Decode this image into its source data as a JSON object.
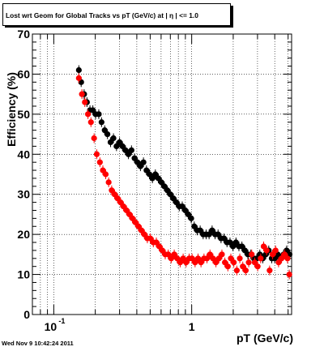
{
  "chart_data": {
    "type": "scatter",
    "title": "Lost wrt Geom for Global Tracks vs pT (GeV/c) at |  η | <= 1.0",
    "xlabel": "pT (GeV/c)",
    "ylabel": "Efficiency (%)",
    "xscale": "log",
    "xlim": [
      0.07,
      5.3
    ],
    "ylim": [
      0,
      70
    ],
    "yticks": [
      0,
      10,
      20,
      30,
      40,
      50,
      60,
      70
    ],
    "xticks": [
      {
        "label": "10",
        "exp": "-1",
        "value": 0.1
      },
      {
        "label": "1",
        "exp": "",
        "value": 1
      }
    ],
    "grid": true,
    "series": [
      {
        "color": "#000000",
        "points": [
          [
            0.152,
            61
          ],
          [
            0.158,
            58
          ],
          [
            0.166,
            55
          ],
          [
            0.174,
            53
          ],
          [
            0.183,
            51
          ],
          [
            0.192,
            51
          ],
          [
            0.201,
            50
          ],
          [
            0.212,
            50
          ],
          [
            0.222,
            48
          ],
          [
            0.234,
            46
          ],
          [
            0.245,
            45
          ],
          [
            0.258,
            43
          ],
          [
            0.271,
            44
          ],
          [
            0.285,
            42
          ],
          [
            0.3,
            43
          ],
          [
            0.315,
            42
          ],
          [
            0.331,
            41
          ],
          [
            0.348,
            40
          ],
          [
            0.366,
            41
          ],
          [
            0.385,
            39
          ],
          [
            0.404,
            38
          ],
          [
            0.425,
            37
          ],
          [
            0.447,
            38
          ],
          [
            0.47,
            36
          ],
          [
            0.494,
            35
          ],
          [
            0.519,
            34
          ],
          [
            0.545,
            35
          ],
          [
            0.573,
            34
          ],
          [
            0.603,
            33
          ],
          [
            0.633,
            32
          ],
          [
            0.666,
            31
          ],
          [
            0.7,
            30
          ],
          [
            0.735,
            29
          ],
          [
            0.773,
            28
          ],
          [
            0.813,
            27
          ],
          [
            0.854,
            27
          ],
          [
            0.898,
            26
          ],
          [
            0.944,
            25
          ],
          [
            0.992,
            24
          ],
          [
            1.043,
            22
          ],
          [
            1.096,
            21
          ],
          [
            1.152,
            21
          ],
          [
            1.211,
            20
          ],
          [
            1.272,
            20
          ],
          [
            1.337,
            20
          ],
          [
            1.406,
            21
          ],
          [
            1.478,
            20
          ],
          [
            1.553,
            20
          ],
          [
            1.632,
            19
          ],
          [
            1.716,
            19
          ],
          [
            1.803,
            18
          ],
          [
            1.895,
            18
          ],
          [
            1.992,
            17
          ],
          [
            2.094,
            18
          ],
          [
            2.2,
            17
          ],
          [
            2.313,
            17
          ],
          [
            2.43,
            16
          ],
          [
            2.555,
            15
          ],
          [
            2.685,
            15
          ],
          [
            2.822,
            14
          ],
          [
            2.966,
            14
          ],
          [
            3.118,
            15
          ],
          [
            3.277,
            14
          ],
          [
            3.444,
            15
          ],
          [
            3.62,
            16
          ],
          [
            3.805,
            14
          ],
          [
            4.0,
            14
          ],
          [
            4.2,
            15
          ],
          [
            4.42,
            14
          ],
          [
            4.64,
            15
          ],
          [
            4.88,
            16
          ],
          [
            5.12,
            15
          ]
        ]
      },
      {
        "color": "#ff0000",
        "points": [
          [
            0.152,
            59
          ],
          [
            0.16,
            55
          ],
          [
            0.168,
            53
          ],
          [
            0.177,
            50
          ],
          [
            0.186,
            48
          ],
          [
            0.196,
            44
          ],
          [
            0.205,
            40
          ],
          [
            0.216,
            38
          ],
          [
            0.227,
            36
          ],
          [
            0.238,
            35
          ],
          [
            0.25,
            33
          ],
          [
            0.263,
            31
          ],
          [
            0.276,
            30
          ],
          [
            0.29,
            29
          ],
          [
            0.305,
            28
          ],
          [
            0.32,
            27
          ],
          [
            0.337,
            26
          ],
          [
            0.354,
            25
          ],
          [
            0.372,
            24
          ],
          [
            0.391,
            23
          ],
          [
            0.411,
            22
          ],
          [
            0.432,
            21
          ],
          [
            0.454,
            20
          ],
          [
            0.477,
            19
          ],
          [
            0.501,
            19
          ],
          [
            0.527,
            18
          ],
          [
            0.554,
            18
          ],
          [
            0.582,
            17
          ],
          [
            0.612,
            16
          ],
          [
            0.643,
            15
          ],
          [
            0.676,
            15
          ],
          [
            0.71,
            14
          ],
          [
            0.747,
            15
          ],
          [
            0.785,
            14
          ],
          [
            0.825,
            13
          ],
          [
            0.867,
            14
          ],
          [
            0.911,
            13
          ],
          [
            0.958,
            14
          ],
          [
            1.006,
            14
          ],
          [
            1.058,
            13
          ],
          [
            1.112,
            14
          ],
          [
            1.168,
            13
          ],
          [
            1.228,
            14
          ],
          [
            1.291,
            14
          ],
          [
            1.357,
            15
          ],
          [
            1.426,
            14
          ],
          [
            1.499,
            13
          ],
          [
            1.575,
            14
          ],
          [
            1.656,
            15
          ],
          [
            1.74,
            13
          ],
          [
            1.829,
            12
          ],
          [
            1.922,
            14
          ],
          [
            2.02,
            13
          ],
          [
            2.124,
            11
          ],
          [
            2.232,
            14
          ],
          [
            2.346,
            12
          ],
          [
            2.466,
            11
          ],
          [
            2.591,
            13
          ],
          [
            2.724,
            15
          ],
          [
            2.863,
            13
          ],
          [
            3.009,
            12
          ],
          [
            3.163,
            14
          ],
          [
            3.324,
            17
          ],
          [
            3.494,
            16
          ],
          [
            3.672,
            11
          ],
          [
            3.86,
            15
          ],
          [
            4.057,
            16
          ],
          [
            4.264,
            13
          ],
          [
            4.482,
            14
          ],
          [
            4.711,
            15
          ],
          [
            4.951,
            14
          ],
          [
            5.1,
            10
          ]
        ]
      }
    ]
  },
  "footer": {
    "timestamp": "Wed Nov  9 10:42:24 2011"
  }
}
